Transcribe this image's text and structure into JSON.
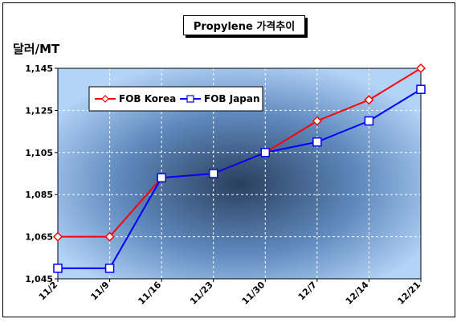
{
  "chart_data": {
    "type": "line",
    "title": "Propylene 가격추이",
    "ylabel": "달러/MT",
    "xlabel": "",
    "categories": [
      "11/2",
      "11/9",
      "11/16",
      "11/23",
      "11/30",
      "12/7",
      "12/14",
      "12/21"
    ],
    "series": [
      {
        "name": "FOB Korea",
        "values": [
          1065,
          1065,
          1093,
          1095,
          1105,
          1120,
          1130,
          1145
        ],
        "color": "#ff0000",
        "marker": "diamond"
      },
      {
        "name": "FOB Japan",
        "values": [
          1050,
          1050,
          1093,
          1095,
          1105,
          1110,
          1120,
          1135
        ],
        "color": "#0000ff",
        "marker": "square"
      }
    ],
    "yticks": [
      "1,045",
      "1,065",
      "1,085",
      "1,105",
      "1,125",
      "1,145"
    ],
    "ylim": [
      1045,
      1145
    ],
    "grid": true,
    "legend": "top-left"
  }
}
